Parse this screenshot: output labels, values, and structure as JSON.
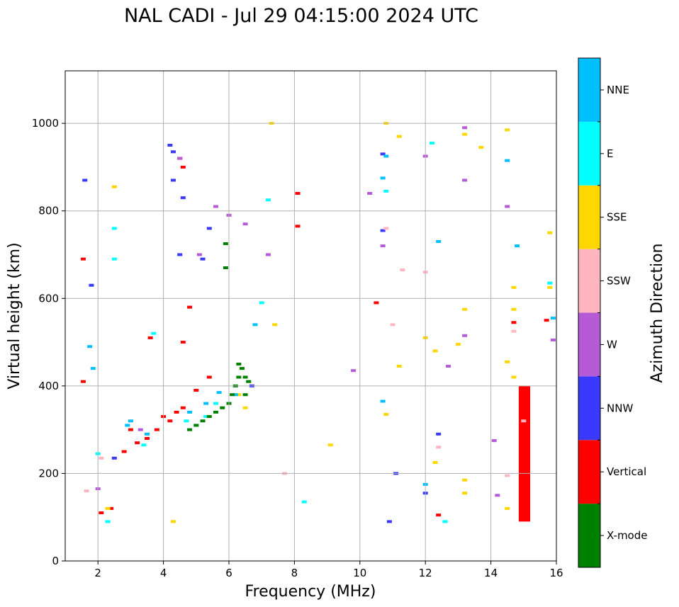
{
  "chart_data": {
    "type": "scatter",
    "title": "NAL CADI - Jul 29 04:15:00 2024 UTC",
    "xlabel": "Frequency (MHz)",
    "ylabel": "Virtual height (km)",
    "xlim": [
      1,
      16
    ],
    "ylim": [
      0,
      1120
    ],
    "xticks": [
      2,
      4,
      6,
      8,
      10,
      12,
      14,
      16
    ],
    "yticks": [
      0,
      200,
      400,
      600,
      800,
      1000
    ],
    "grid": true,
    "colorbar": {
      "label": "Azimuth Direction",
      "categories": [
        {
          "name": "X-mode",
          "color": "#008000"
        },
        {
          "name": "Vertical",
          "color": "#ff0000"
        },
        {
          "name": "NNW",
          "color": "#3a3aff"
        },
        {
          "name": "W",
          "color": "#b65bd6"
        },
        {
          "name": "SSW",
          "color": "#ffb6c1"
        },
        {
          "name": "SSE",
          "color": "#ffd700"
        },
        {
          "name": "E",
          "color": "#00ffff"
        },
        {
          "name": "NNE",
          "color": "#00bfff"
        }
      ]
    },
    "series": [
      {
        "name": "Vertical",
        "x": [
          1.55,
          1.55,
          2.1,
          2.4,
          2.8,
          3.0,
          3.2,
          3.5,
          3.8,
          4.0,
          4.2,
          4.4,
          4.6,
          5.0,
          5.4,
          3.6,
          4.6,
          4.8,
          8.1,
          8.1,
          12.4,
          14.7,
          15.7,
          10.5,
          4.5,
          4.6
        ],
        "y": [
          690,
          410,
          110,
          120,
          250,
          300,
          270,
          280,
          300,
          330,
          320,
          340,
          350,
          390,
          420,
          510,
          500,
          580,
          840,
          765,
          105,
          545,
          550,
          590,
          920,
          900
        ]
      },
      {
        "name": "NNW",
        "x": [
          1.6,
          1.8,
          2.5,
          4.2,
          4.3,
          4.5,
          4.6,
          5.2,
          5.4,
          6.7,
          10.7,
          10.7,
          12.0,
          10.9,
          11.1,
          12.4,
          4.3
        ],
        "y": [
          870,
          630,
          235,
          950,
          935,
          700,
          830,
          690,
          760,
          400,
          755,
          930,
          155,
          90,
          200,
          290,
          870
        ]
      },
      {
        "name": "W",
        "x": [
          2.0,
          3.3,
          4.5,
          5.1,
          5.6,
          6.0,
          6.5,
          7.2,
          10.3,
          10.7,
          12.0,
          13.2,
          13.2,
          13.2,
          14.1,
          14.5,
          15.9,
          9.8,
          12.7,
          14.2
        ],
        "y": [
          165,
          300,
          920,
          700,
          810,
          790,
          770,
          700,
          840,
          720,
          925,
          990,
          870,
          515,
          275,
          810,
          505,
          435,
          445,
          150
        ]
      },
      {
        "name": "SSW",
        "x": [
          1.65,
          2.1,
          7.7,
          10.8,
          11.3,
          12.0,
          14.5,
          14.7,
          15.0,
          11.0,
          12.4
        ],
        "y": [
          160,
          235,
          200,
          760,
          665,
          660,
          195,
          525,
          320,
          540,
          260
        ]
      },
      {
        "name": "SSE",
        "x": [
          2.3,
          2.5,
          4.3,
          7.3,
          7.4,
          10.8,
          11.2,
          11.2,
          12.0,
          12.3,
          12.3,
          13.0,
          13.2,
          13.2,
          13.2,
          13.7,
          14.5,
          14.7,
          14.7,
          14.7,
          15.8,
          15.8,
          6.3,
          6.5,
          9.1,
          14.5,
          14.5,
          10.8,
          13.2
        ],
        "y": [
          120,
          855,
          90,
          1000,
          540,
          1000,
          970,
          445,
          510,
          480,
          225,
          495,
          975,
          575,
          185,
          945,
          985,
          625,
          575,
          420,
          750,
          625,
          380,
          350,
          265,
          120,
          455,
          335,
          155
        ]
      },
      {
        "name": "E",
        "x": [
          2.3,
          2.5,
          2.5,
          3.4,
          3.7,
          4.7,
          5.0,
          5.3,
          5.6,
          7.0,
          7.2,
          10.8,
          12.2,
          12.6,
          15.8,
          8.3,
          2.0
        ],
        "y": [
          90,
          760,
          690,
          265,
          520,
          320,
          310,
          330,
          360,
          590,
          825,
          845,
          955,
          90,
          635,
          135,
          245
        ]
      },
      {
        "name": "NNE",
        "x": [
          1.75,
          1.85,
          2.9,
          3.0,
          3.5,
          4.8,
          5.3,
          5.7,
          6.2,
          6.8,
          10.7,
          10.7,
          12.4,
          14.8,
          15.9,
          10.8,
          12.0,
          14.5
        ],
        "y": [
          490,
          440,
          310,
          320,
          290,
          340,
          360,
          385,
          380,
          540,
          875,
          365,
          730,
          720,
          555,
          925,
          175,
          915
        ]
      },
      {
        "name": "X-mode",
        "x": [
          4.8,
          5.0,
          5.2,
          5.4,
          5.6,
          5.8,
          6.0,
          6.1,
          6.2,
          6.3,
          6.3,
          6.4,
          6.5,
          6.6,
          6.5,
          5.9,
          5.9
        ],
        "y": [
          300,
          310,
          320,
          330,
          340,
          350,
          360,
          380,
          400,
          420,
          450,
          440,
          420,
          410,
          380,
          725,
          670
        ]
      }
    ],
    "bars": [
      {
        "name": "Vertical",
        "x_range": [
          14.85,
          15.2
        ],
        "y_range": [
          90,
          400
        ]
      }
    ]
  }
}
